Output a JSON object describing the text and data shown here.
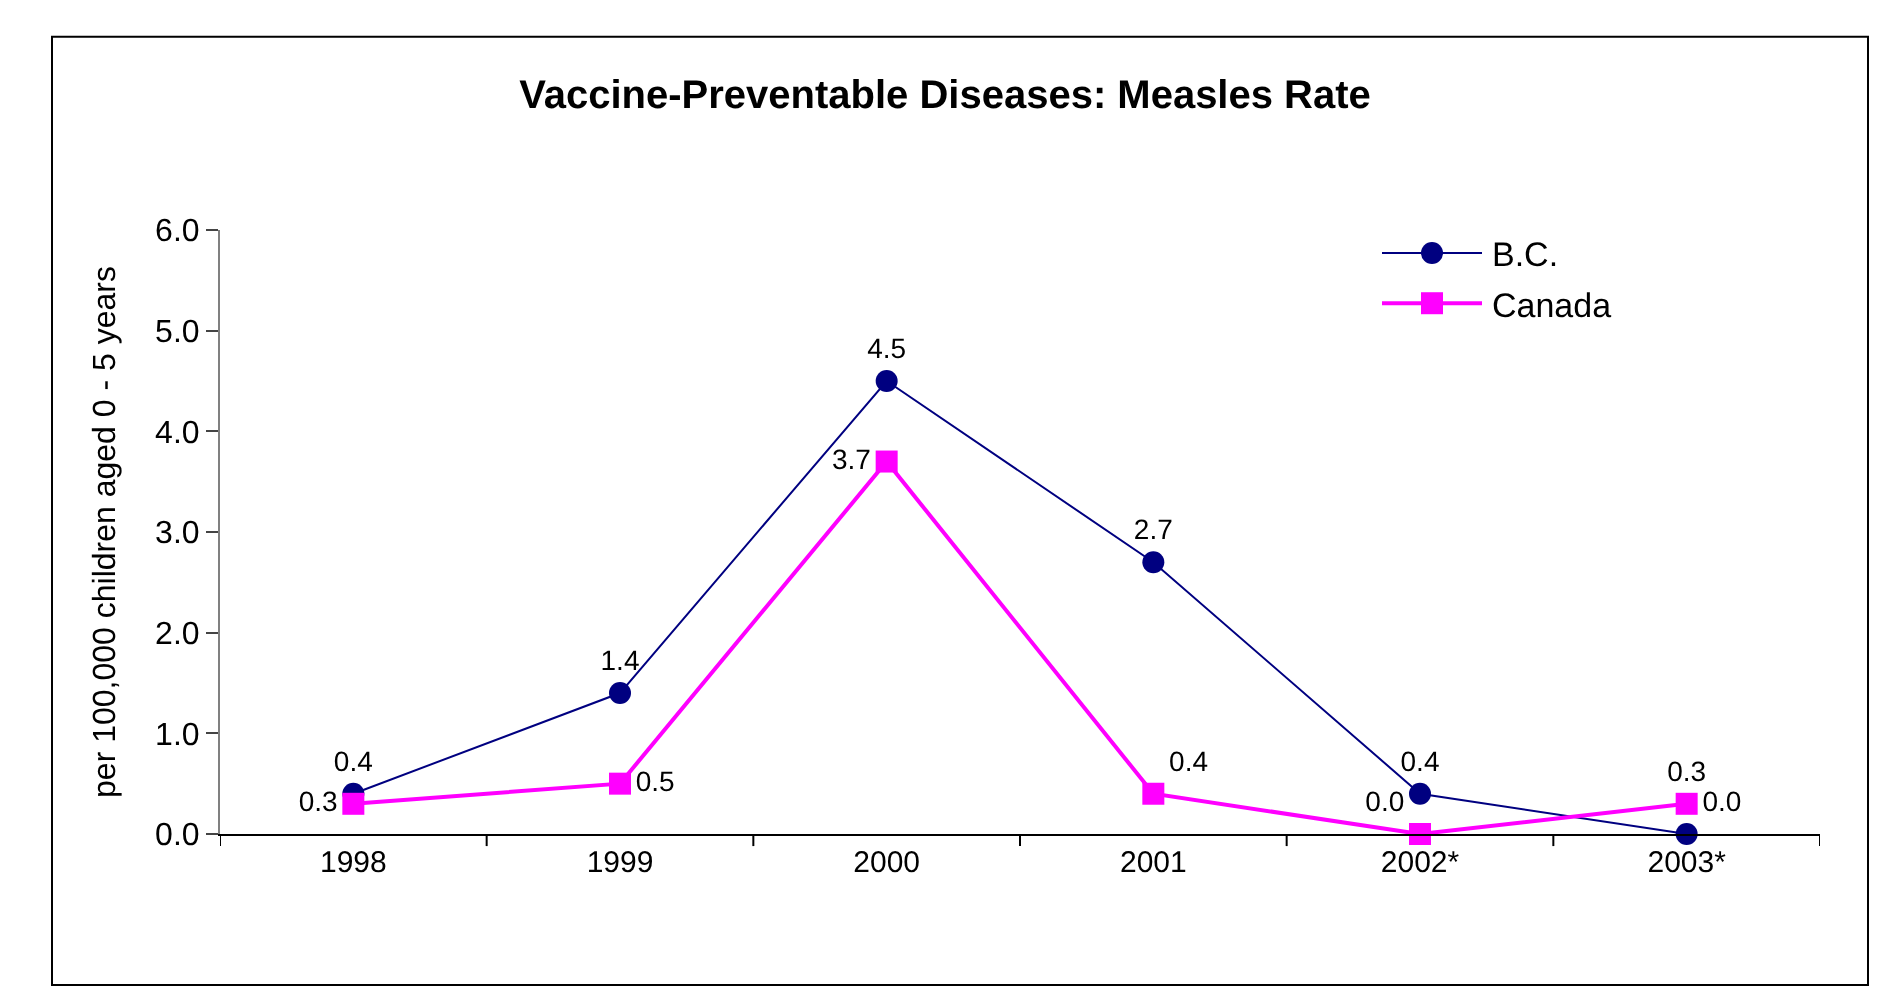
{
  "chart_data": {
    "type": "line",
    "title": "Vaccine-Preventable Diseases: Measles Rate",
    "ylabel": "per 100,000 children aged 0 - 5 years",
    "categories": [
      "1998",
      "1999",
      "2000",
      "2001",
      "2002*",
      "2003*"
    ],
    "series": [
      {
        "name": "B.C.",
        "color": "#000080",
        "marker": "circle",
        "values": [
          0.4,
          1.4,
          4.5,
          2.7,
          0.4,
          0.0
        ],
        "value_labels": [
          "0.4",
          "1.4",
          "4.5",
          "2.7",
          "0.4",
          "0.0"
        ]
      },
      {
        "name": "Canada",
        "color": "#ff00ff",
        "marker": "square",
        "values": [
          0.3,
          0.5,
          3.7,
          0.4,
          0.0,
          0.3
        ],
        "value_labels": [
          "0.3",
          "0.5",
          "3.7",
          "0.4",
          "0.0",
          "0.3"
        ]
      }
    ],
    "ylim": [
      0,
      6
    ],
    "yticks": [
      {
        "value": 0,
        "label": "0.0"
      },
      {
        "value": 1,
        "label": "1.0"
      },
      {
        "value": 2,
        "label": "2.0"
      },
      {
        "value": 3,
        "label": "3.0"
      },
      {
        "value": 4,
        "label": "4.0"
      },
      {
        "value": 5,
        "label": "5.0"
      },
      {
        "value": 6,
        "label": "6.0"
      }
    ],
    "legend": "top right"
  }
}
